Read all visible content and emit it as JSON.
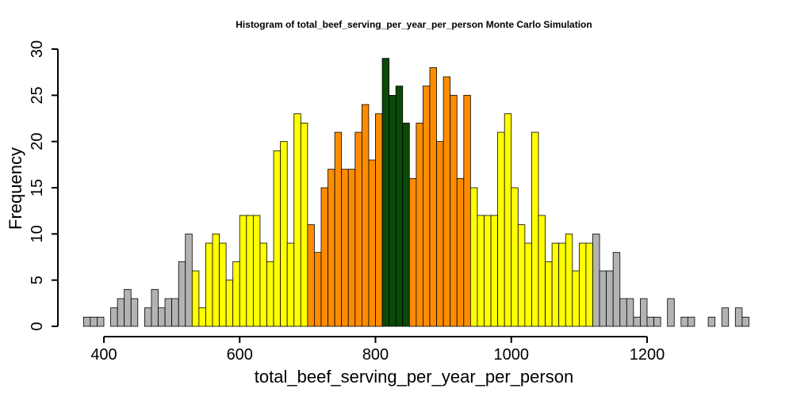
{
  "chart_data": {
    "type": "bar",
    "title": "Histogram of  total_beef_serving_per_year_per_person  Monte Carlo Simulation",
    "xlabel": "total_beef_serving_per_year_per_person",
    "ylabel": "Frequency",
    "bin_width": 10,
    "xlim": [
      370,
      1340
    ],
    "ylim": [
      0,
      30
    ],
    "x_ticks": [
      400,
      600,
      800,
      1000,
      1200
    ],
    "y_ticks": [
      0,
      5,
      10,
      15,
      20,
      25,
      30
    ],
    "x_tick_labels": [
      "400",
      "600",
      "800",
      "1000",
      "1200"
    ],
    "y_tick_labels": [
      "0",
      "5",
      "10",
      "15",
      "20",
      "25",
      "30"
    ],
    "grid": false,
    "legend": "none",
    "colors": {
      "tail": "#b3b3b3",
      "outer": "#ffff00",
      "middle": "#ff8c00",
      "center": "#0a4a06"
    },
    "bins": [
      {
        "start": 370,
        "count": 1,
        "color": "#b3b3b3"
      },
      {
        "start": 380,
        "count": 1,
        "color": "#b3b3b3"
      },
      {
        "start": 390,
        "count": 1,
        "color": "#b3b3b3"
      },
      {
        "start": 400,
        "count": 0,
        "color": "#b3b3b3"
      },
      {
        "start": 410,
        "count": 2,
        "color": "#b3b3b3"
      },
      {
        "start": 420,
        "count": 3,
        "color": "#b3b3b3"
      },
      {
        "start": 430,
        "count": 4,
        "color": "#b3b3b3"
      },
      {
        "start": 440,
        "count": 3,
        "color": "#b3b3b3"
      },
      {
        "start": 450,
        "count": 0,
        "color": "#b3b3b3"
      },
      {
        "start": 460,
        "count": 2,
        "color": "#b3b3b3"
      },
      {
        "start": 470,
        "count": 4,
        "color": "#b3b3b3"
      },
      {
        "start": 480,
        "count": 2,
        "color": "#b3b3b3"
      },
      {
        "start": 490,
        "count": 3,
        "color": "#b3b3b3"
      },
      {
        "start": 500,
        "count": 3,
        "color": "#b3b3b3"
      },
      {
        "start": 510,
        "count": 7,
        "color": "#b3b3b3"
      },
      {
        "start": 520,
        "count": 10,
        "color": "#b3b3b3"
      },
      {
        "start": 530,
        "count": 6,
        "color": "#ffff00"
      },
      {
        "start": 540,
        "count": 2,
        "color": "#ffff00"
      },
      {
        "start": 550,
        "count": 9,
        "color": "#ffff00"
      },
      {
        "start": 560,
        "count": 10,
        "color": "#ffff00"
      },
      {
        "start": 570,
        "count": 9,
        "color": "#ffff00"
      },
      {
        "start": 580,
        "count": 5,
        "color": "#ffff00"
      },
      {
        "start": 590,
        "count": 7,
        "color": "#ffff00"
      },
      {
        "start": 600,
        "count": 12,
        "color": "#ffff00"
      },
      {
        "start": 610,
        "count": 12,
        "color": "#ffff00"
      },
      {
        "start": 620,
        "count": 12,
        "color": "#ffff00"
      },
      {
        "start": 630,
        "count": 9,
        "color": "#ffff00"
      },
      {
        "start": 640,
        "count": 7,
        "color": "#ffff00"
      },
      {
        "start": 650,
        "count": 19,
        "color": "#ffff00"
      },
      {
        "start": 660,
        "count": 20,
        "color": "#ffff00"
      },
      {
        "start": 670,
        "count": 9,
        "color": "#ffff00"
      },
      {
        "start": 680,
        "count": 23,
        "color": "#ffff00"
      },
      {
        "start": 690,
        "count": 22,
        "color": "#ffff00"
      },
      {
        "start": 700,
        "count": 11,
        "color": "#ff8c00"
      },
      {
        "start": 710,
        "count": 8,
        "color": "#ff8c00"
      },
      {
        "start": 720,
        "count": 15,
        "color": "#ff8c00"
      },
      {
        "start": 730,
        "count": 17,
        "color": "#ff8c00"
      },
      {
        "start": 740,
        "count": 21,
        "color": "#ff8c00"
      },
      {
        "start": 750,
        "count": 17,
        "color": "#ff8c00"
      },
      {
        "start": 760,
        "count": 17,
        "color": "#ff8c00"
      },
      {
        "start": 770,
        "count": 21,
        "color": "#ff8c00"
      },
      {
        "start": 780,
        "count": 24,
        "color": "#ff8c00"
      },
      {
        "start": 790,
        "count": 18,
        "color": "#ff8c00"
      },
      {
        "start": 800,
        "count": 23,
        "color": "#ff8c00"
      },
      {
        "start": 810,
        "count": 29,
        "color": "#0a4a06"
      },
      {
        "start": 820,
        "count": 25,
        "color": "#0a4a06"
      },
      {
        "start": 830,
        "count": 26,
        "color": "#0a4a06"
      },
      {
        "start": 840,
        "count": 22,
        "color": "#0a4a06"
      },
      {
        "start": 850,
        "count": 16,
        "color": "#ff8c00"
      },
      {
        "start": 860,
        "count": 22,
        "color": "#ff8c00"
      },
      {
        "start": 870,
        "count": 26,
        "color": "#ff8c00"
      },
      {
        "start": 880,
        "count": 28,
        "color": "#ff8c00"
      },
      {
        "start": 890,
        "count": 20,
        "color": "#ff8c00"
      },
      {
        "start": 900,
        "count": 27,
        "color": "#ff8c00"
      },
      {
        "start": 910,
        "count": 25,
        "color": "#ff8c00"
      },
      {
        "start": 920,
        "count": 16,
        "color": "#ff8c00"
      },
      {
        "start": 930,
        "count": 25,
        "color": "#ff8c00"
      },
      {
        "start": 940,
        "count": 15,
        "color": "#ffff00"
      },
      {
        "start": 950,
        "count": 12,
        "color": "#ffff00"
      },
      {
        "start": 960,
        "count": 12,
        "color": "#ffff00"
      },
      {
        "start": 970,
        "count": 12,
        "color": "#ffff00"
      },
      {
        "start": 980,
        "count": 21,
        "color": "#ffff00"
      },
      {
        "start": 990,
        "count": 23,
        "color": "#ffff00"
      },
      {
        "start": 1000,
        "count": 15,
        "color": "#ffff00"
      },
      {
        "start": 1010,
        "count": 11,
        "color": "#ffff00"
      },
      {
        "start": 1020,
        "count": 9,
        "color": "#ffff00"
      },
      {
        "start": 1030,
        "count": 21,
        "color": "#ffff00"
      },
      {
        "start": 1040,
        "count": 12,
        "color": "#ffff00"
      },
      {
        "start": 1050,
        "count": 7,
        "color": "#ffff00"
      },
      {
        "start": 1060,
        "count": 9,
        "color": "#ffff00"
      },
      {
        "start": 1070,
        "count": 9,
        "color": "#ffff00"
      },
      {
        "start": 1080,
        "count": 10,
        "color": "#ffff00"
      },
      {
        "start": 1090,
        "count": 6,
        "color": "#ffff00"
      },
      {
        "start": 1100,
        "count": 9,
        "color": "#ffff00"
      },
      {
        "start": 1110,
        "count": 9,
        "color": "#ffff00"
      },
      {
        "start": 1120,
        "count": 10,
        "color": "#b3b3b3"
      },
      {
        "start": 1130,
        "count": 6,
        "color": "#b3b3b3"
      },
      {
        "start": 1140,
        "count": 6,
        "color": "#b3b3b3"
      },
      {
        "start": 1150,
        "count": 8,
        "color": "#b3b3b3"
      },
      {
        "start": 1160,
        "count": 3,
        "color": "#b3b3b3"
      },
      {
        "start": 1170,
        "count": 3,
        "color": "#b3b3b3"
      },
      {
        "start": 1180,
        "count": 1,
        "color": "#b3b3b3"
      },
      {
        "start": 1190,
        "count": 3,
        "color": "#b3b3b3"
      },
      {
        "start": 1200,
        "count": 1,
        "color": "#b3b3b3"
      },
      {
        "start": 1210,
        "count": 1,
        "color": "#b3b3b3"
      },
      {
        "start": 1220,
        "count": 0,
        "color": "#b3b3b3"
      },
      {
        "start": 1230,
        "count": 3,
        "color": "#b3b3b3"
      },
      {
        "start": 1240,
        "count": 0,
        "color": "#b3b3b3"
      },
      {
        "start": 1250,
        "count": 1,
        "color": "#b3b3b3"
      },
      {
        "start": 1260,
        "count": 1,
        "color": "#b3b3b3"
      },
      {
        "start": 1270,
        "count": 0,
        "color": "#b3b3b3"
      },
      {
        "start": 1280,
        "count": 0,
        "color": "#b3b3b3"
      },
      {
        "start": 1290,
        "count": 1,
        "color": "#b3b3b3"
      },
      {
        "start": 1300,
        "count": 0,
        "color": "#b3b3b3"
      },
      {
        "start": 1310,
        "count": 2,
        "color": "#b3b3b3"
      },
      {
        "start": 1320,
        "count": 0,
        "color": "#b3b3b3"
      },
      {
        "start": 1330,
        "count": 2,
        "color": "#b3b3b3"
      },
      {
        "start": 1340,
        "count": 1,
        "color": "#b3b3b3"
      }
    ]
  }
}
